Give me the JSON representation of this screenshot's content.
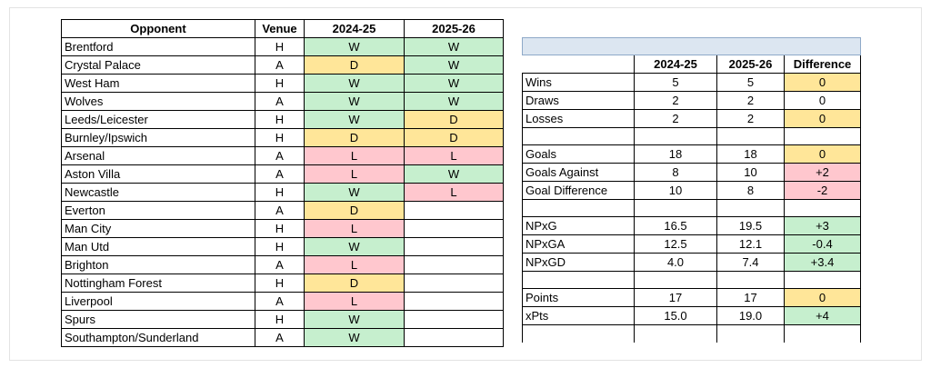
{
  "fixtures": {
    "headers": [
      "Opponent",
      "Venue",
      "2024-25",
      "2025-26"
    ],
    "rows": [
      {
        "opponent": "Brentford",
        "venue": "H",
        "r2425": "W",
        "r2526": "W"
      },
      {
        "opponent": "Crystal Palace",
        "venue": "A",
        "r2425": "D",
        "r2526": "W"
      },
      {
        "opponent": "West Ham",
        "venue": "H",
        "r2425": "W",
        "r2526": "W"
      },
      {
        "opponent": "Wolves",
        "venue": "A",
        "r2425": "W",
        "r2526": "W"
      },
      {
        "opponent": "Leeds/Leicester",
        "venue": "H",
        "r2425": "W",
        "r2526": "D"
      },
      {
        "opponent": "Burnley/Ipswich",
        "venue": "H",
        "r2425": "D",
        "r2526": "D"
      },
      {
        "opponent": "Arsenal",
        "venue": "A",
        "r2425": "L",
        "r2526": "L"
      },
      {
        "opponent": "Aston Villa",
        "venue": "A",
        "r2425": "L",
        "r2526": "W"
      },
      {
        "opponent": "Newcastle",
        "venue": "H",
        "r2425": "W",
        "r2526": "L"
      },
      {
        "opponent": "Everton",
        "venue": "A",
        "r2425": "D",
        "r2526": ""
      },
      {
        "opponent": "Man City",
        "venue": "H",
        "r2425": "L",
        "r2526": ""
      },
      {
        "opponent": "Man Utd",
        "venue": "H",
        "r2425": "W",
        "r2526": ""
      },
      {
        "opponent": "Brighton",
        "venue": "A",
        "r2425": "L",
        "r2526": ""
      },
      {
        "opponent": "Nottingham Forest",
        "venue": "H",
        "r2425": "D",
        "r2526": ""
      },
      {
        "opponent": "Liverpool",
        "venue": "A",
        "r2425": "L",
        "r2526": ""
      },
      {
        "opponent": "Spurs",
        "venue": "H",
        "r2425": "W",
        "r2526": ""
      },
      {
        "opponent": "Southampton/Sunderland",
        "venue": "A",
        "r2425": "W",
        "r2526": ""
      }
    ]
  },
  "summary": {
    "headers": [
      "",
      "2024-25",
      "2025-26",
      "Difference"
    ],
    "groups": [
      [
        {
          "label": "Wins",
          "a": "5",
          "b": "5",
          "diff": "0",
          "tone": "D"
        },
        {
          "label": "Draws",
          "a": "2",
          "b": "2",
          "diff": "0",
          "tone": ""
        },
        {
          "label": "Losses",
          "a": "2",
          "b": "2",
          "diff": "0",
          "tone": "D"
        }
      ],
      [
        {
          "label": "Goals",
          "a": "18",
          "b": "18",
          "diff": "0",
          "tone": "D"
        },
        {
          "label": "Goals Against",
          "a": "8",
          "b": "10",
          "diff": "+2",
          "tone": "L"
        },
        {
          "label": "Goal Difference",
          "a": "10",
          "b": "8",
          "diff": "-2",
          "tone": "L"
        }
      ],
      [
        {
          "label": "NPxG",
          "a": "16.5",
          "b": "19.5",
          "diff": "+3",
          "tone": "W"
        },
        {
          "label": "NPxGA",
          "a": "12.5",
          "b": "12.1",
          "diff": "-0.4",
          "tone": "W"
        },
        {
          "label": "NPxGD",
          "a": "4.0",
          "b": "7.4",
          "diff": "+3.4",
          "tone": "W"
        }
      ],
      [
        {
          "label": "Points",
          "a": "17",
          "b": "17",
          "diff": "0",
          "tone": "D"
        },
        {
          "label": "xPts",
          "a": "15.0",
          "b": "19.0",
          "diff": "+4",
          "tone": "W"
        }
      ]
    ]
  },
  "colors": {
    "win": "#c6efce",
    "draw": "#ffe699",
    "loss": "#ffc7ce",
    "header_bar": "#dce6f1"
  }
}
